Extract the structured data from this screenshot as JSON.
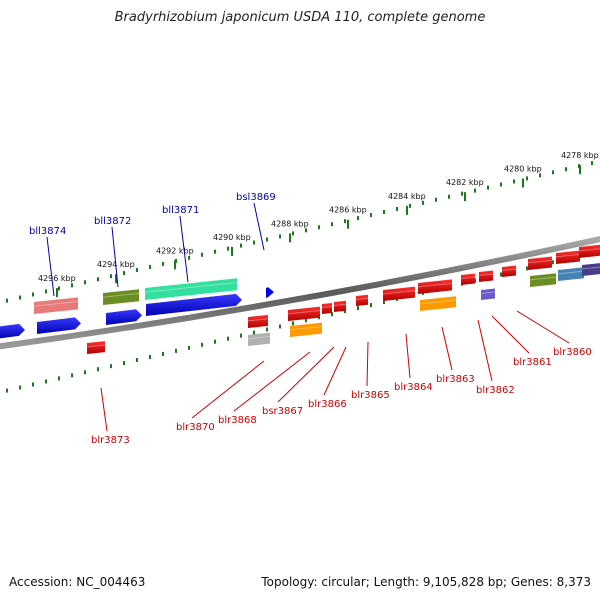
{
  "title": "Bradyrhizobium japonicum USDA 110, complete genome",
  "footer": {
    "accession": "Accession: NC_004463",
    "summary": "Topology: circular; Length: 9,105,828 bp; Genes: 8,373"
  },
  "colors": {
    "backbone": "#7a7a7a",
    "ruler": "#1a7a1a",
    "label_top": "#0000aa",
    "label_bottom": "#cc0000"
  },
  "scale": {
    "ticks": [
      {
        "kbp": 4296,
        "label": "4296 kbp"
      },
      {
        "kbp": 4294,
        "label": "4294 kbp"
      },
      {
        "kbp": 4292,
        "label": "4292 kbp"
      },
      {
        "kbp": 4290,
        "label": "4290 kbp"
      },
      {
        "kbp": 4288,
        "label": "4288 kbp"
      },
      {
        "kbp": 4286,
        "label": "4286 kbp"
      },
      {
        "kbp": 4284,
        "label": "4284 kbp"
      },
      {
        "kbp": 4282,
        "label": "4282 kbp"
      },
      {
        "kbp": 4280,
        "label": "4280 kbp"
      },
      {
        "kbp": 4278,
        "label": "4278 kbp"
      }
    ]
  },
  "labels_top": [
    {
      "text": "bll3874"
    },
    {
      "text": "bll3872"
    },
    {
      "text": "bll3871"
    },
    {
      "text": "bsl3869"
    }
  ],
  "labels_bottom": [
    {
      "text": "blr3873"
    },
    {
      "text": "blr3870"
    },
    {
      "text": "blr3868"
    },
    {
      "text": "bsr3867"
    },
    {
      "text": "blr3866"
    },
    {
      "text": "blr3865"
    },
    {
      "text": "blr3864"
    },
    {
      "text": "blr3863"
    },
    {
      "text": "blr3862"
    },
    {
      "text": "blr3861"
    },
    {
      "text": "blr3860"
    }
  ]
}
